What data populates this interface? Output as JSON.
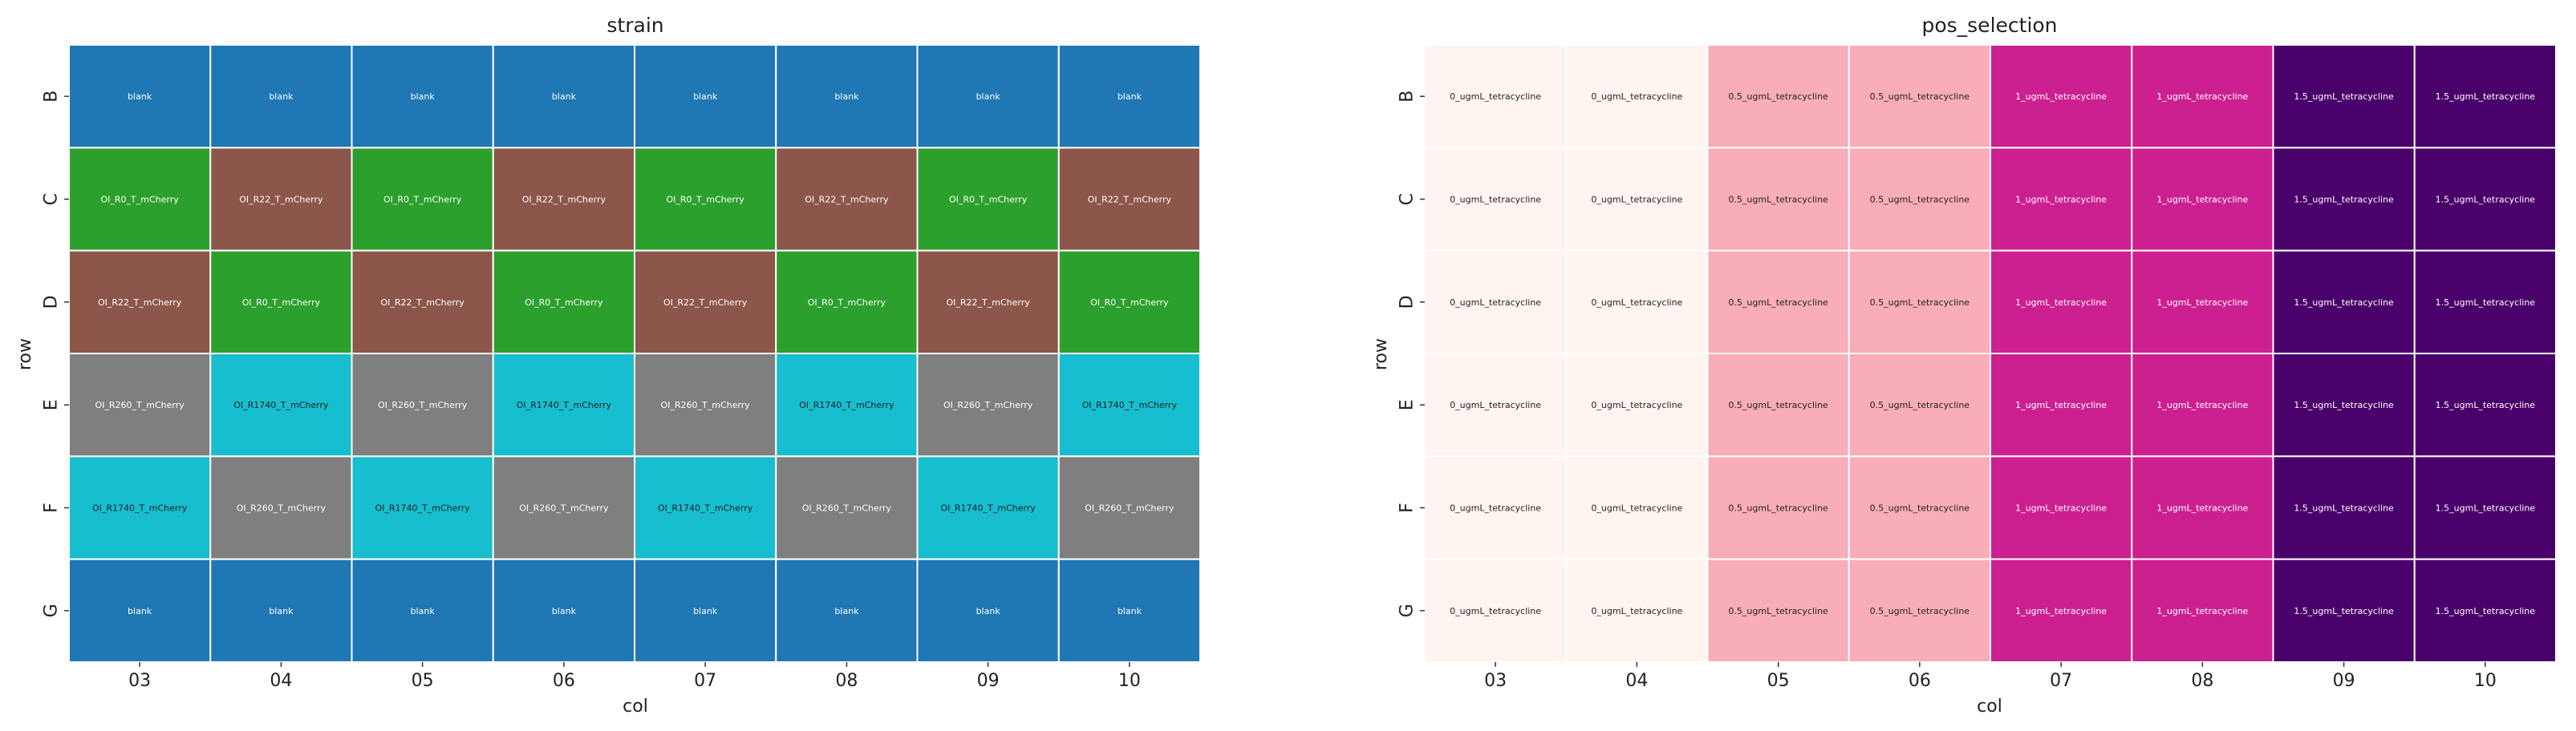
{
  "chart_data": [
    {
      "type": "heatmap",
      "title": "strain",
      "xlabel": "col",
      "ylabel": "row",
      "x_categories": [
        "03",
        "04",
        "05",
        "06",
        "07",
        "08",
        "09",
        "10"
      ],
      "y_categories": [
        "B",
        "C",
        "D",
        "E",
        "F",
        "G"
      ],
      "cells": [
        [
          "blank",
          "blank",
          "blank",
          "blank",
          "blank",
          "blank",
          "blank",
          "blank"
        ],
        [
          "OI_R0_T_mCherry",
          "OI_R22_T_mCherry",
          "OI_R0_T_mCherry",
          "OI_R22_T_mCherry",
          "OI_R0_T_mCherry",
          "OI_R22_T_mCherry",
          "OI_R0_T_mCherry",
          "OI_R22_T_mCherry"
        ],
        [
          "OI_R22_T_mCherry",
          "OI_R0_T_mCherry",
          "OI_R22_T_mCherry",
          "OI_R0_T_mCherry",
          "OI_R22_T_mCherry",
          "OI_R0_T_mCherry",
          "OI_R22_T_mCherry",
          "OI_R0_T_mCherry"
        ],
        [
          "OI_R260_T_mCherry",
          "OI_R1740_T_mCherry",
          "OI_R260_T_mCherry",
          "OI_R1740_T_mCherry",
          "OI_R260_T_mCherry",
          "OI_R1740_T_mCherry",
          "OI_R260_T_mCherry",
          "OI_R1740_T_mCherry"
        ],
        [
          "OI_R1740_T_mCherry",
          "OI_R260_T_mCherry",
          "OI_R1740_T_mCherry",
          "OI_R260_T_mCherry",
          "OI_R1740_T_mCherry",
          "OI_R260_T_mCherry",
          "OI_R1740_T_mCherry",
          "OI_R260_T_mCherry"
        ],
        [
          "blank",
          "blank",
          "blank",
          "blank",
          "blank",
          "blank",
          "blank",
          "blank"
        ]
      ],
      "colors": {
        "blank": "#1f77b4",
        "OI_R0_T_mCherry": "#2ca02c",
        "OI_R22_T_mCherry": "#8c564b",
        "OI_R260_T_mCherry": "#7f7f7f",
        "OI_R1740_T_mCherry": "#17becf"
      },
      "text_colors": {
        "blank": "#ffffff",
        "OI_R0_T_mCherry": "#ffffff",
        "OI_R22_T_mCherry": "#ffffff",
        "OI_R260_T_mCherry": "#ffffff",
        "OI_R1740_T_mCherry": "#222222"
      },
      "grid_line_color": "#ffffff"
    },
    {
      "type": "heatmap",
      "title": "pos_selection",
      "xlabel": "col",
      "ylabel": "row",
      "x_categories": [
        "03",
        "04",
        "05",
        "06",
        "07",
        "08",
        "09",
        "10"
      ],
      "y_categories": [
        "B",
        "C",
        "D",
        "E",
        "F",
        "G"
      ],
      "cells": [
        [
          "0_ugmL_tetracycline",
          "0_ugmL_tetracycline",
          "0.5_ugmL_tetracycline",
          "0.5_ugmL_tetracycline",
          "1_ugmL_tetracycline",
          "1_ugmL_tetracycline",
          "1.5_ugmL_tetracycline",
          "1.5_ugmL_tetracycline"
        ],
        [
          "0_ugmL_tetracycline",
          "0_ugmL_tetracycline",
          "0.5_ugmL_tetracycline",
          "0.5_ugmL_tetracycline",
          "1_ugmL_tetracycline",
          "1_ugmL_tetracycline",
          "1.5_ugmL_tetracycline",
          "1.5_ugmL_tetracycline"
        ],
        [
          "0_ugmL_tetracycline",
          "0_ugmL_tetracycline",
          "0.5_ugmL_tetracycline",
          "0.5_ugmL_tetracycline",
          "1_ugmL_tetracycline",
          "1_ugmL_tetracycline",
          "1.5_ugmL_tetracycline",
          "1.5_ugmL_tetracycline"
        ],
        [
          "0_ugmL_tetracycline",
          "0_ugmL_tetracycline",
          "0.5_ugmL_tetracycline",
          "0.5_ugmL_tetracycline",
          "1_ugmL_tetracycline",
          "1_ugmL_tetracycline",
          "1.5_ugmL_tetracycline",
          "1.5_ugmL_tetracycline"
        ],
        [
          "0_ugmL_tetracycline",
          "0_ugmL_tetracycline",
          "0.5_ugmL_tetracycline",
          "0.5_ugmL_tetracycline",
          "1_ugmL_tetracycline",
          "1_ugmL_tetracycline",
          "1.5_ugmL_tetracycline",
          "1.5_ugmL_tetracycline"
        ],
        [
          "0_ugmL_tetracycline",
          "0_ugmL_tetracycline",
          "0.5_ugmL_tetracycline",
          "0.5_ugmL_tetracycline",
          "1_ugmL_tetracycline",
          "1_ugmL_tetracycline",
          "1.5_ugmL_tetracycline",
          "1.5_ugmL_tetracycline"
        ]
      ],
      "colors": {
        "0_ugmL_tetracycline": "#fff5f0",
        "0.5_ugmL_tetracycline": "#f9adb8",
        "1_ugmL_tetracycline": "#cc2091",
        "1.5_ugmL_tetracycline": "#4a006a"
      },
      "text_colors": {
        "0_ugmL_tetracycline": "#222222",
        "0.5_ugmL_tetracycline": "#222222",
        "1_ugmL_tetracycline": "#ffffff",
        "1.5_ugmL_tetracycline": "#ffffff"
      },
      "grid_line_color": "#ffffff"
    }
  ]
}
